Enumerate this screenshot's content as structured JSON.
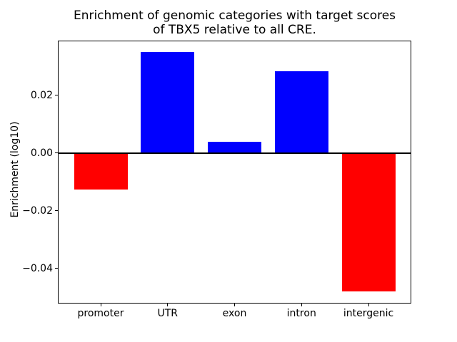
{
  "chart_data": {
    "type": "bar",
    "title": "Enrichment of genomic categories with target scores\nof TBX5 relative to all CRE.",
    "xlabel": "",
    "ylabel": "Enrichment (log10)",
    "categories": [
      "promoter",
      "UTR",
      "exon",
      "intron",
      "intergenic"
    ],
    "values": [
      -0.0125,
      0.035,
      0.004,
      0.0285,
      -0.048
    ],
    "bar_colors": [
      "#ff0000",
      "#0000ff",
      "#0000ff",
      "#0000ff",
      "#ff0000"
    ],
    "positive_color": "#0000ff",
    "negative_color": "#ff0000",
    "bar_width": 0.8,
    "ylim": [
      -0.0521,
      0.039
    ],
    "xlim": [
      -0.64,
      4.64
    ],
    "yticks": [
      {
        "value": 0.02,
        "label": "0.02"
      },
      {
        "value": 0.0,
        "label": "0.00"
      },
      {
        "value": -0.02,
        "label": "−0.02"
      },
      {
        "value": -0.04,
        "label": "−0.04"
      }
    ],
    "zero_line": true,
    "grid": false,
    "legend": null
  }
}
